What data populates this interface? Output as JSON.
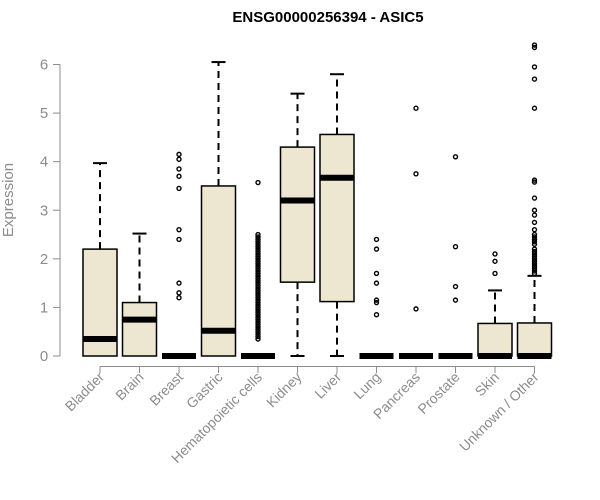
{
  "chart_data": {
    "type": "boxplot",
    "title": "ENSG00000256394 - ASIC5",
    "ylabel": "Expression",
    "xlabel": "",
    "ylim": [
      0,
      6.5
    ],
    "yticks": [
      0,
      1,
      2,
      3,
      4,
      5,
      6
    ],
    "grid": false,
    "box_fill": "#ede7d1",
    "categories": [
      "Bladder",
      "Brain",
      "Breast",
      "Gastric",
      "Hematopoietic cells",
      "Kidney",
      "Liver",
      "Lung",
      "Pancreas",
      "Prostate",
      "Skin",
      "Unknown / Other"
    ],
    "boxes": [
      {
        "q1": 0,
        "median": 0.35,
        "q3": 2.2,
        "whisker_low": 0,
        "whisker_high": 3.97,
        "outliers": []
      },
      {
        "q1": 0,
        "median": 0.75,
        "q3": 1.1,
        "whisker_low": 0,
        "whisker_high": 2.52,
        "outliers": []
      },
      {
        "q1": 0,
        "median": 0,
        "q3": 0,
        "whisker_low": 0,
        "whisker_high": 0,
        "outliers": [
          4.15,
          4.05,
          3.85,
          3.7,
          3.45,
          2.6,
          2.4,
          1.5,
          1.3,
          1.2
        ]
      },
      {
        "q1": 0,
        "median": 0.52,
        "q3": 3.5,
        "whisker_low": 0,
        "whisker_high": 6.05,
        "outliers": []
      },
      {
        "q1": 0,
        "median": 0,
        "q3": 0,
        "whisker_low": 0,
        "whisker_high": 0,
        "outliers": [
          3.57,
          2.5,
          2.45,
          2.4,
          2.35,
          2.3,
          2.25,
          2.2,
          2.15,
          2.1,
          2.05,
          2.0,
          1.95,
          1.9,
          1.85,
          1.8,
          1.75,
          1.7,
          1.65,
          1.6,
          1.55,
          1.5,
          1.45,
          1.4,
          1.35,
          1.3,
          1.25,
          1.2,
          1.15,
          1.1,
          1.05,
          1.0,
          0.95,
          0.9,
          0.85,
          0.8,
          0.75,
          0.7,
          0.65,
          0.6,
          0.55,
          0.5,
          0.45,
          0.4,
          0.35
        ]
      },
      {
        "q1": 1.52,
        "median": 3.2,
        "q3": 4.3,
        "whisker_low": 0,
        "whisker_high": 5.4,
        "outliers": []
      },
      {
        "q1": 1.12,
        "median": 3.67,
        "q3": 4.56,
        "whisker_low": 0,
        "whisker_high": 5.8,
        "outliers": []
      },
      {
        "q1": 0,
        "median": 0,
        "q3": 0,
        "whisker_low": 0,
        "whisker_high": 0,
        "outliers": [
          2.4,
          2.2,
          1.7,
          1.5,
          1.15,
          1.1,
          0.85
        ]
      },
      {
        "q1": 0,
        "median": 0,
        "q3": 0,
        "whisker_low": 0,
        "whisker_high": 0,
        "outliers": [
          5.1,
          3.75,
          0.97
        ]
      },
      {
        "q1": 0,
        "median": 0,
        "q3": 0,
        "whisker_low": 0,
        "whisker_high": 0,
        "outliers": [
          4.1,
          2.25,
          1.43,
          1.15
        ]
      },
      {
        "q1": 0,
        "median": 0,
        "q3": 0.67,
        "whisker_low": 0,
        "whisker_high": 1.35,
        "outliers": [
          2.1,
          1.95,
          1.7
        ]
      },
      {
        "q1": 0,
        "median": 0,
        "q3": 0.68,
        "whisker_low": 0,
        "whisker_high": 1.65,
        "outliers": [
          6.4,
          6.35,
          5.95,
          5.7,
          5.1,
          3.62,
          3.58,
          3.25,
          3.0,
          2.9,
          2.75,
          2.6,
          2.5,
          2.45,
          2.4,
          2.35,
          2.3,
          2.2,
          2.15,
          2.1,
          2.05,
          2.0,
          1.95,
          1.9,
          1.85,
          1.8,
          1.75,
          1.7
        ]
      }
    ]
  }
}
